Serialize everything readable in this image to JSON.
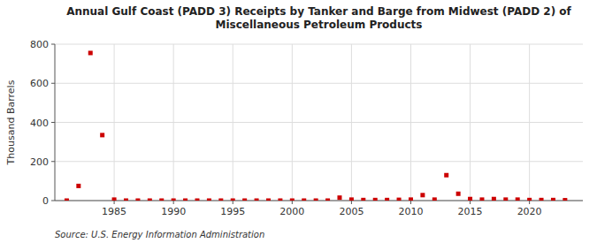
{
  "chart_data": {
    "type": "scatter",
    "title": "Annual Gulf Coast (PADD 3) Receipts by Tanker and Barge from Midwest (PADD 2) of\nMiscellaneous Petroleum Products",
    "y_label": "Thousand Barrels",
    "annotations": [
      "Source: U.S. Energy Information Administration"
    ],
    "x": [
      1981,
      1982,
      1983,
      1984,
      1985,
      1986,
      1987,
      1988,
      1989,
      1990,
      1991,
      1992,
      1993,
      1994,
      1995,
      1996,
      1997,
      1998,
      1999,
      2000,
      2001,
      2002,
      2003,
      2004,
      2005,
      2006,
      2007,
      2008,
      2009,
      2010,
      2011,
      2012,
      2013,
      2014,
      2015,
      2016,
      2017,
      2018,
      2019,
      2020,
      2021,
      2022,
      2023
    ],
    "values": [
      0,
      75,
      755,
      335,
      5,
      0,
      0,
      0,
      0,
      0,
      0,
      0,
      0,
      0,
      0,
      0,
      0,
      0,
      0,
      0,
      0,
      0,
      0,
      15,
      5,
      3,
      3,
      3,
      4,
      5,
      28,
      5,
      130,
      35,
      8,
      5,
      8,
      5,
      5,
      3,
      3,
      3,
      2
    ],
    "color": "#cc0000",
    "marker": "square",
    "xlim": [
      1980,
      2024.5
    ],
    "ylim": [
      0,
      800
    ],
    "xticks": [
      1985,
      1990,
      1995,
      2000,
      2005,
      2010,
      2015,
      2020
    ],
    "yticks": [
      0,
      200,
      400,
      600,
      800
    ],
    "grid": true
  }
}
